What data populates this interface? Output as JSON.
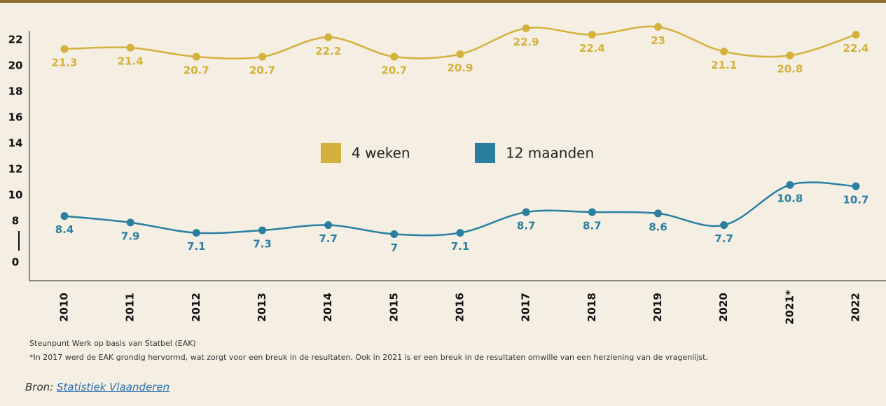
{
  "chart_data": {
    "type": "line",
    "categories": [
      "2010",
      "2011",
      "2012",
      "2013",
      "2014",
      "2015",
      "2016",
      "2017",
      "2018",
      "2019",
      "2020",
      "2021*",
      "2022"
    ],
    "series": [
      {
        "name": "4 weken",
        "color": "#d4b13a",
        "values": [
          21.3,
          21.4,
          20.7,
          20.7,
          22.2,
          20.7,
          20.9,
          22.9,
          22.4,
          23,
          21.1,
          20.8,
          22.4
        ]
      },
      {
        "name": "12 maanden",
        "color": "#2a7fa0",
        "values": [
          8.4,
          7.9,
          7.1,
          7.3,
          7.7,
          7,
          7.1,
          8.7,
          8.7,
          8.6,
          7.7,
          10.8,
          10.7
        ]
      }
    ],
    "ylim": [
      0,
      23
    ],
    "yticks": [
      0,
      8,
      10,
      12,
      14,
      16,
      18,
      20,
      22
    ],
    "axis_break": true,
    "notes": [
      "Steunpunt Werk op basis van Statbel (EAK)",
      "*In 2017 werd de EAK grondig hervormd, wat zorgt voor een breuk in de resultaten. Ook in 2021 is er een breuk in de resultaten omwille van een herziening van de vragenlijst."
    ],
    "source_label": "Bron:",
    "source_link": "Statistiek Vlaanderen"
  }
}
